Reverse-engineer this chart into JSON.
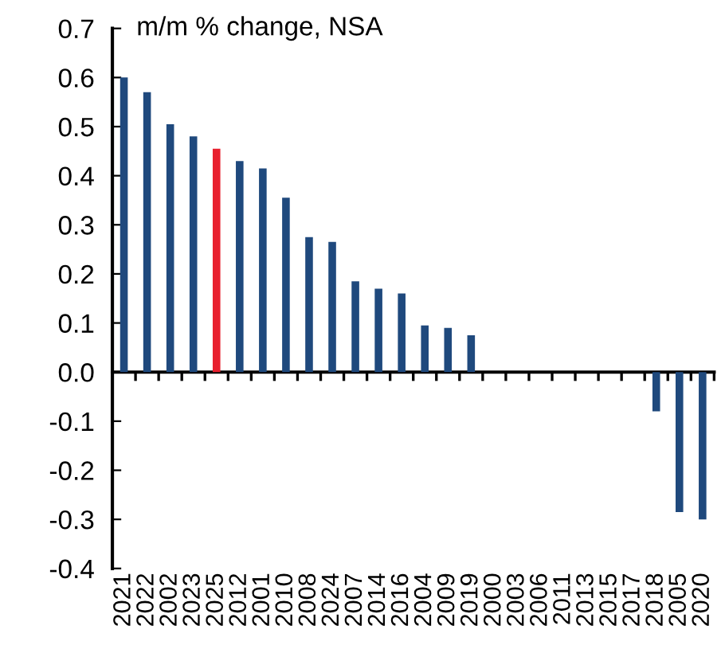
{
  "chart_data": {
    "type": "bar",
    "title": "m/m % change, NSA",
    "categories": [
      "2021",
      "2022",
      "2002",
      "2023",
      "2025",
      "2012",
      "2001",
      "2010",
      "2008",
      "2024",
      "2007",
      "2014",
      "2016",
      "2004",
      "2009",
      "2019",
      "2000",
      "2003",
      "2006",
      "2011",
      "2013",
      "2015",
      "2017",
      "2018",
      "2005",
      "2020"
    ],
    "values": [
      0.6,
      0.57,
      0.505,
      0.48,
      0.455,
      0.43,
      0.415,
      0.355,
      0.275,
      0.265,
      0.185,
      0.17,
      0.16,
      0.095,
      0.09,
      0.075,
      0,
      0,
      0,
      0,
      0,
      0,
      0,
      -0.08,
      -0.285,
      -0.3
    ],
    "colors": [
      "#1f497d",
      "#1f497d",
      "#1f497d",
      "#1f497d",
      "#e8202e",
      "#1f497d",
      "#1f497d",
      "#1f497d",
      "#1f497d",
      "#1f497d",
      "#1f497d",
      "#1f497d",
      "#1f497d",
      "#1f497d",
      "#1f497d",
      "#1f497d",
      "#1f497d",
      "#1f497d",
      "#1f497d",
      "#1f497d",
      "#1f497d",
      "#1f497d",
      "#1f497d",
      "#1f497d",
      "#1f497d",
      "#1f497d"
    ],
    "ylim": [
      -0.4,
      0.7
    ],
    "yticks": [
      {
        "value": -0.4,
        "label": "-0.4"
      },
      {
        "value": -0.3,
        "label": "-0.3"
      },
      {
        "value": -0.2,
        "label": "-0.2"
      },
      {
        "value": -0.1,
        "label": "-0.1"
      },
      {
        "value": 0,
        "label": "0.0"
      },
      0.1,
      0.2,
      0.3,
      0.4,
      0.5,
      0.6,
      0.7
    ]
  }
}
